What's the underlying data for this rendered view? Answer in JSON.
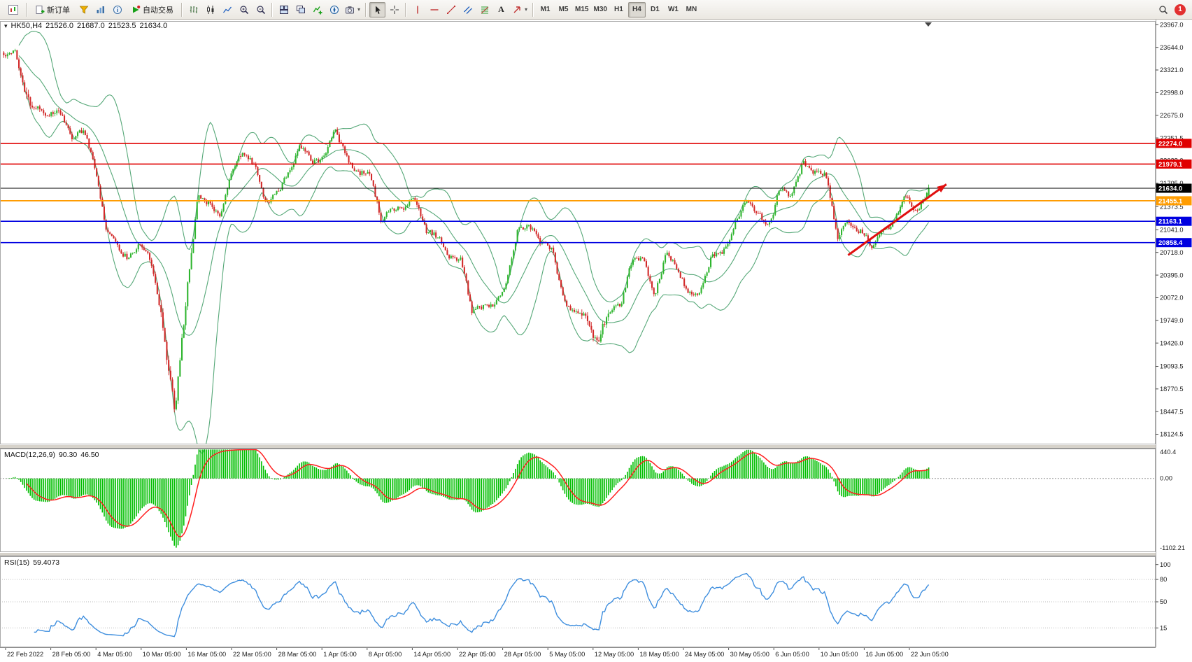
{
  "toolbar": {
    "new_order_label": "新订单",
    "auto_trading_label": "自动交易",
    "timeframes": [
      "M1",
      "M5",
      "M15",
      "M30",
      "H1",
      "H4",
      "D1",
      "W1",
      "MN"
    ],
    "active_timeframe": "H4",
    "notification_badge": "1"
  },
  "chart": {
    "header": {
      "symbol_period": "HK50,H4",
      "open": "21526.0",
      "high": "21687.0",
      "low": "21523.5",
      "close": "21634.0"
    },
    "axis": {
      "price_ticks": [
        "23967.0",
        "23644.0",
        "23321.0",
        "22998.0",
        "22675.0",
        "22351.5",
        "22028.0",
        "21705.0",
        "21373.5",
        "21041.0",
        "20718.0",
        "20395.0",
        "20072.0",
        "19749.0",
        "19426.0",
        "19093.5",
        "18770.5",
        "18447.5",
        "18124.5"
      ],
      "time_labels": [
        "22 Feb 2022",
        "28 Feb 05:00",
        "4 Mar 05:00",
        "10 Mar 05:00",
        "16 Mar 05:00",
        "22 Mar 05:00",
        "28 Mar 05:00",
        "1 Apr 05:00",
        "8 Apr 05:00",
        "14 Apr 05:00",
        "22 Apr 05:00",
        "28 Apr 05:00",
        "5 May 05:00",
        "12 May 05:00",
        "18 May 05:00",
        "24 May 05:00",
        "30 May 05:00",
        "6 Jun 05:00",
        "10 Jun 05:00",
        "16 Jun 05:00",
        "22 Jun 05:00"
      ]
    },
    "price_lines": [
      {
        "price": 22274.0,
        "label": "22274.0",
        "color": "#e00000",
        "width": 1.6
      },
      {
        "price": 21979.1,
        "label": "21979.1",
        "color": "#e00000",
        "width": 1.6
      },
      {
        "price": 21455.1,
        "label": "21455.1",
        "color": "#ff9c00",
        "width": 1.8
      },
      {
        "price": 21163.1,
        "label": "21163.1",
        "color": "#0000e0",
        "width": 1.6
      },
      {
        "price": 20858.4,
        "label": "20858.4",
        "color": "#0000e0",
        "width": 1.6
      }
    ],
    "current_price": {
      "price": 21634.0,
      "label": "21634.0",
      "color": "#000000",
      "width": 1
    }
  },
  "macd_panel": {
    "label": "MACD(12,26,9)",
    "value_main": "90.30",
    "value_signal": "46.50",
    "scale_ticks": [
      "440.4",
      "0.00",
      "-1102.21"
    ],
    "range_max": 440.4,
    "range_min": -1102.21
  },
  "rsi_panel": {
    "label": "RSI(15)",
    "value": "59.4073",
    "scale_ticks": [
      100,
      80,
      50,
      15
    ],
    "levels": [
      80,
      50,
      15
    ]
  },
  "chart_data": {
    "type": "candlestick",
    "symbol": "HK50",
    "timeframe": "H4",
    "price_range_visible": [
      18124.5,
      23967.0
    ],
    "candles_per_day": 6,
    "total_candles": 489,
    "close_anchors_by_trading_day": [
      [
        0,
        23520
      ],
      [
        1,
        23660
      ],
      [
        2,
        22901
      ],
      [
        3,
        22767
      ],
      [
        4,
        22713
      ],
      [
        5,
        22700
      ],
      [
        6,
        22343
      ],
      [
        7,
        22467
      ],
      [
        8,
        21905
      ],
      [
        9,
        21057
      ],
      [
        10,
        20765
      ],
      [
        11,
        20627
      ],
      [
        12,
        20890
      ],
      [
        13,
        20553
      ],
      [
        14,
        19531
      ],
      [
        15,
        18415
      ],
      [
        16,
        20087
      ],
      [
        17,
        21501
      ],
      [
        18,
        21412
      ],
      [
        19,
        21221
      ],
      [
        20,
        21889
      ],
      [
        21,
        22154
      ],
      [
        22,
        21945
      ],
      [
        23,
        21404
      ],
      [
        24,
        21613
      ],
      [
        25,
        21893
      ],
      [
        26,
        22232
      ],
      [
        27,
        21997
      ],
      [
        28,
        22039
      ],
      [
        29,
        22502
      ],
      [
        30,
        22080
      ],
      [
        31,
        21808
      ],
      [
        32,
        21872
      ],
      [
        33,
        21208
      ],
      [
        34,
        21319
      ],
      [
        35,
        21374
      ],
      [
        36,
        21518
      ],
      [
        37,
        21027
      ],
      [
        38,
        20944
      ],
      [
        39,
        20682
      ],
      [
        40,
        20638
      ],
      [
        41,
        19869
      ],
      [
        42,
        19934
      ],
      [
        43,
        19946
      ],
      [
        44,
        20276
      ],
      [
        45,
        21089
      ],
      [
        46,
        21100
      ],
      [
        47,
        20870
      ],
      [
        48,
        20793
      ],
      [
        49,
        20002
      ],
      [
        50,
        19867
      ],
      [
        51,
        19824
      ],
      [
        52,
        19380
      ],
      [
        53,
        19898
      ],
      [
        54,
        19950
      ],
      [
        55,
        20602
      ],
      [
        56,
        20644
      ],
      [
        57,
        20120
      ],
      [
        58,
        20717
      ],
      [
        59,
        20470
      ],
      [
        60,
        20112
      ],
      [
        61,
        20171
      ],
      [
        62,
        20697
      ],
      [
        63,
        20697
      ],
      [
        64,
        21123
      ],
      [
        65,
        21415
      ],
      [
        66,
        21295
      ],
      [
        67,
        21082
      ],
      [
        68,
        21653
      ],
      [
        69,
        21531
      ],
      [
        70,
        22014
      ],
      [
        71,
        21869
      ],
      [
        72,
        21806
      ],
      [
        73,
        20950
      ],
      [
        74,
        21150
      ],
      [
        75,
        21050
      ],
      [
        76,
        20800
      ],
      [
        77,
        20950
      ],
      [
        78,
        21150
      ],
      [
        79,
        21500
      ],
      [
        80,
        21300
      ],
      [
        81,
        21634
      ]
    ],
    "volatility_boosts": [
      [
        1.6,
        2.6,
        1.8
      ],
      [
        13.5,
        16.5,
        2.2
      ],
      [
        50.5,
        53.0,
        1.8
      ]
    ],
    "last_candle": {
      "open": 21526.0,
      "high": 21687.0,
      "low": 21523.5,
      "close": 21634.0
    },
    "indicators": {
      "bollinger": {
        "period": 20,
        "deviation": 2
      },
      "macd": {
        "fast": 12,
        "slow": 26,
        "signal": 9
      },
      "rsi": {
        "period": 15
      }
    },
    "horizontal_lines": [
      22274.0,
      21979.1,
      21634.0,
      21455.1,
      21163.1,
      20858.4
    ],
    "trend_arrow": {
      "from": {
        "candle_frac": 0.912,
        "price": 20680
      },
      "to": {
        "candle_frac": 1.018,
        "price": 21690
      },
      "color": "#e01010"
    }
  },
  "colors": {
    "bull": "#2fb52f",
    "bear": "#d22a2a",
    "bollinger": "#56a878",
    "macd_hist": "#00be00",
    "macd_signal": "#ff2020",
    "rsi_line": "#3e8ede",
    "axis_text": "#1a1a1a"
  }
}
